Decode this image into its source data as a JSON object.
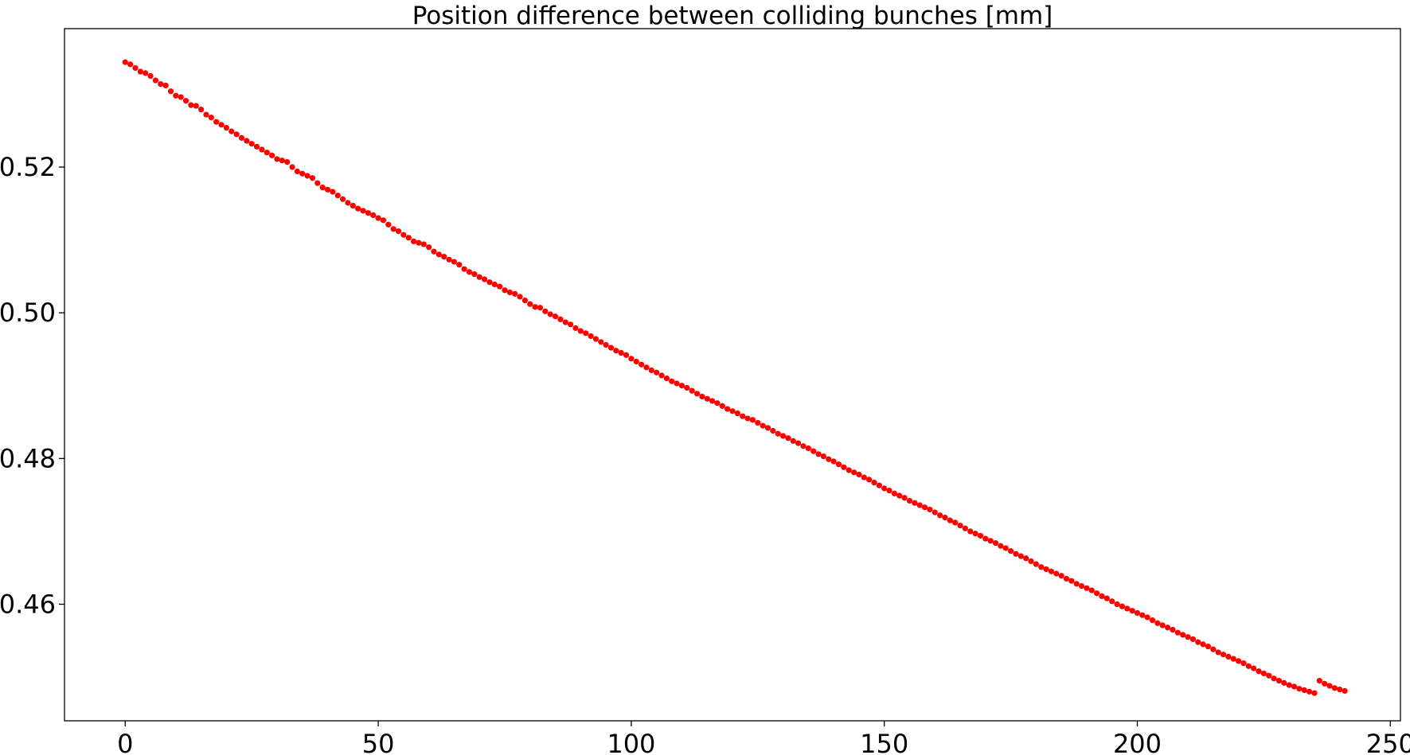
{
  "chart_data": {
    "type": "scatter",
    "title": "Position difference between colliding bunches [mm]",
    "xlabel": "",
    "ylabel": "",
    "xlim": [
      -12,
      252
    ],
    "ylim": [
      0.444,
      0.539
    ],
    "xticks": [
      0,
      50,
      100,
      150,
      200,
      250
    ],
    "xtick_labels": [
      "0",
      "50",
      "100",
      "150",
      "200",
      "250"
    ],
    "yticks": [
      0.46,
      0.48,
      0.5,
      0.52
    ],
    "ytick_labels": [
      "0.46",
      "0.48",
      "0.50",
      "0.52"
    ],
    "grid": false,
    "legend": "none",
    "marker_color": "#ff0000",
    "series": [
      {
        "x_start": 0,
        "x_end": 241,
        "x_step": 1,
        "values": [
          0.5344,
          0.5341,
          0.5336,
          0.5331,
          0.5329,
          0.5325,
          0.5319,
          0.5314,
          0.5312,
          0.5304,
          0.5298,
          0.5296,
          0.5291,
          0.5285,
          0.5284,
          0.5279,
          0.5272,
          0.5268,
          0.5262,
          0.5258,
          0.5254,
          0.5249,
          0.5245,
          0.524,
          0.5236,
          0.5232,
          0.5228,
          0.5224,
          0.522,
          0.5216,
          0.5211,
          0.5209,
          0.5207,
          0.52,
          0.5194,
          0.5191,
          0.5188,
          0.5185,
          0.5178,
          0.5172,
          0.5169,
          0.5166,
          0.5161,
          0.5156,
          0.5151,
          0.5147,
          0.5143,
          0.514,
          0.5137,
          0.5134,
          0.513,
          0.5127,
          0.5121,
          0.5115,
          0.5112,
          0.5107,
          0.5103,
          0.5098,
          0.5096,
          0.5094,
          0.509,
          0.5084,
          0.508,
          0.5077,
          0.5073,
          0.507,
          0.5066,
          0.506,
          0.5056,
          0.5053,
          0.5049,
          0.5046,
          0.5042,
          0.5039,
          0.5036,
          0.5031,
          0.5028,
          0.5026,
          0.5022,
          0.5017,
          0.5012,
          0.5008,
          0.5007,
          0.5002,
          0.4998,
          0.4995,
          0.4991,
          0.4987,
          0.4984,
          0.4979,
          0.4975,
          0.4972,
          0.4968,
          0.4964,
          0.496,
          0.4956,
          0.4952,
          0.4948,
          0.4945,
          0.4942,
          0.4937,
          0.4933,
          0.4929,
          0.4925,
          0.4921,
          0.4918,
          0.4914,
          0.491,
          0.4906,
          0.4903,
          0.49,
          0.4897,
          0.4893,
          0.4889,
          0.4885,
          0.4882,
          0.4879,
          0.4876,
          0.4872,
          0.4868,
          0.4865,
          0.4862,
          0.4858,
          0.4855,
          0.4853,
          0.4849,
          0.4845,
          0.4842,
          0.4838,
          0.4834,
          0.4831,
          0.4828,
          0.4824,
          0.4821,
          0.4817,
          0.4814,
          0.481,
          0.4806,
          0.4803,
          0.4799,
          0.4796,
          0.4792,
          0.4788,
          0.4784,
          0.4781,
          0.4778,
          0.4774,
          0.4771,
          0.4767,
          0.4763,
          0.4759,
          0.4756,
          0.4752,
          0.4749,
          0.4746,
          0.4742,
          0.4739,
          0.4736,
          0.4733,
          0.473,
          0.4726,
          0.4722,
          0.4719,
          0.4715,
          0.4712,
          0.4708,
          0.4704,
          0.47,
          0.4697,
          0.4694,
          0.469,
          0.4687,
          0.4684,
          0.468,
          0.4677,
          0.4673,
          0.4669,
          0.4666,
          0.4663,
          0.4659,
          0.4655,
          0.4651,
          0.4648,
          0.4645,
          0.4642,
          0.4639,
          0.4635,
          0.4632,
          0.4628,
          0.4625,
          0.4622,
          0.4619,
          0.4615,
          0.4611,
          0.4608,
          0.4604,
          0.46,
          0.4597,
          0.4594,
          0.4591,
          0.4588,
          0.4585,
          0.4582,
          0.4578,
          0.4574,
          0.4571,
          0.4568,
          0.4565,
          0.4561,
          0.4558,
          0.4555,
          0.4552,
          0.4548,
          0.4545,
          0.4542,
          0.4538,
          0.4534,
          0.4531,
          0.4528,
          0.4525,
          0.4522,
          0.4519,
          0.4515,
          0.4512,
          0.4508,
          0.4505,
          0.4502,
          0.4498,
          0.4495,
          0.4492,
          0.4489,
          0.4487,
          0.4484,
          0.4482,
          0.448,
          0.4478,
          0.4495,
          0.4491,
          0.4488,
          0.4485,
          0.4483,
          0.4481
        ]
      }
    ]
  }
}
